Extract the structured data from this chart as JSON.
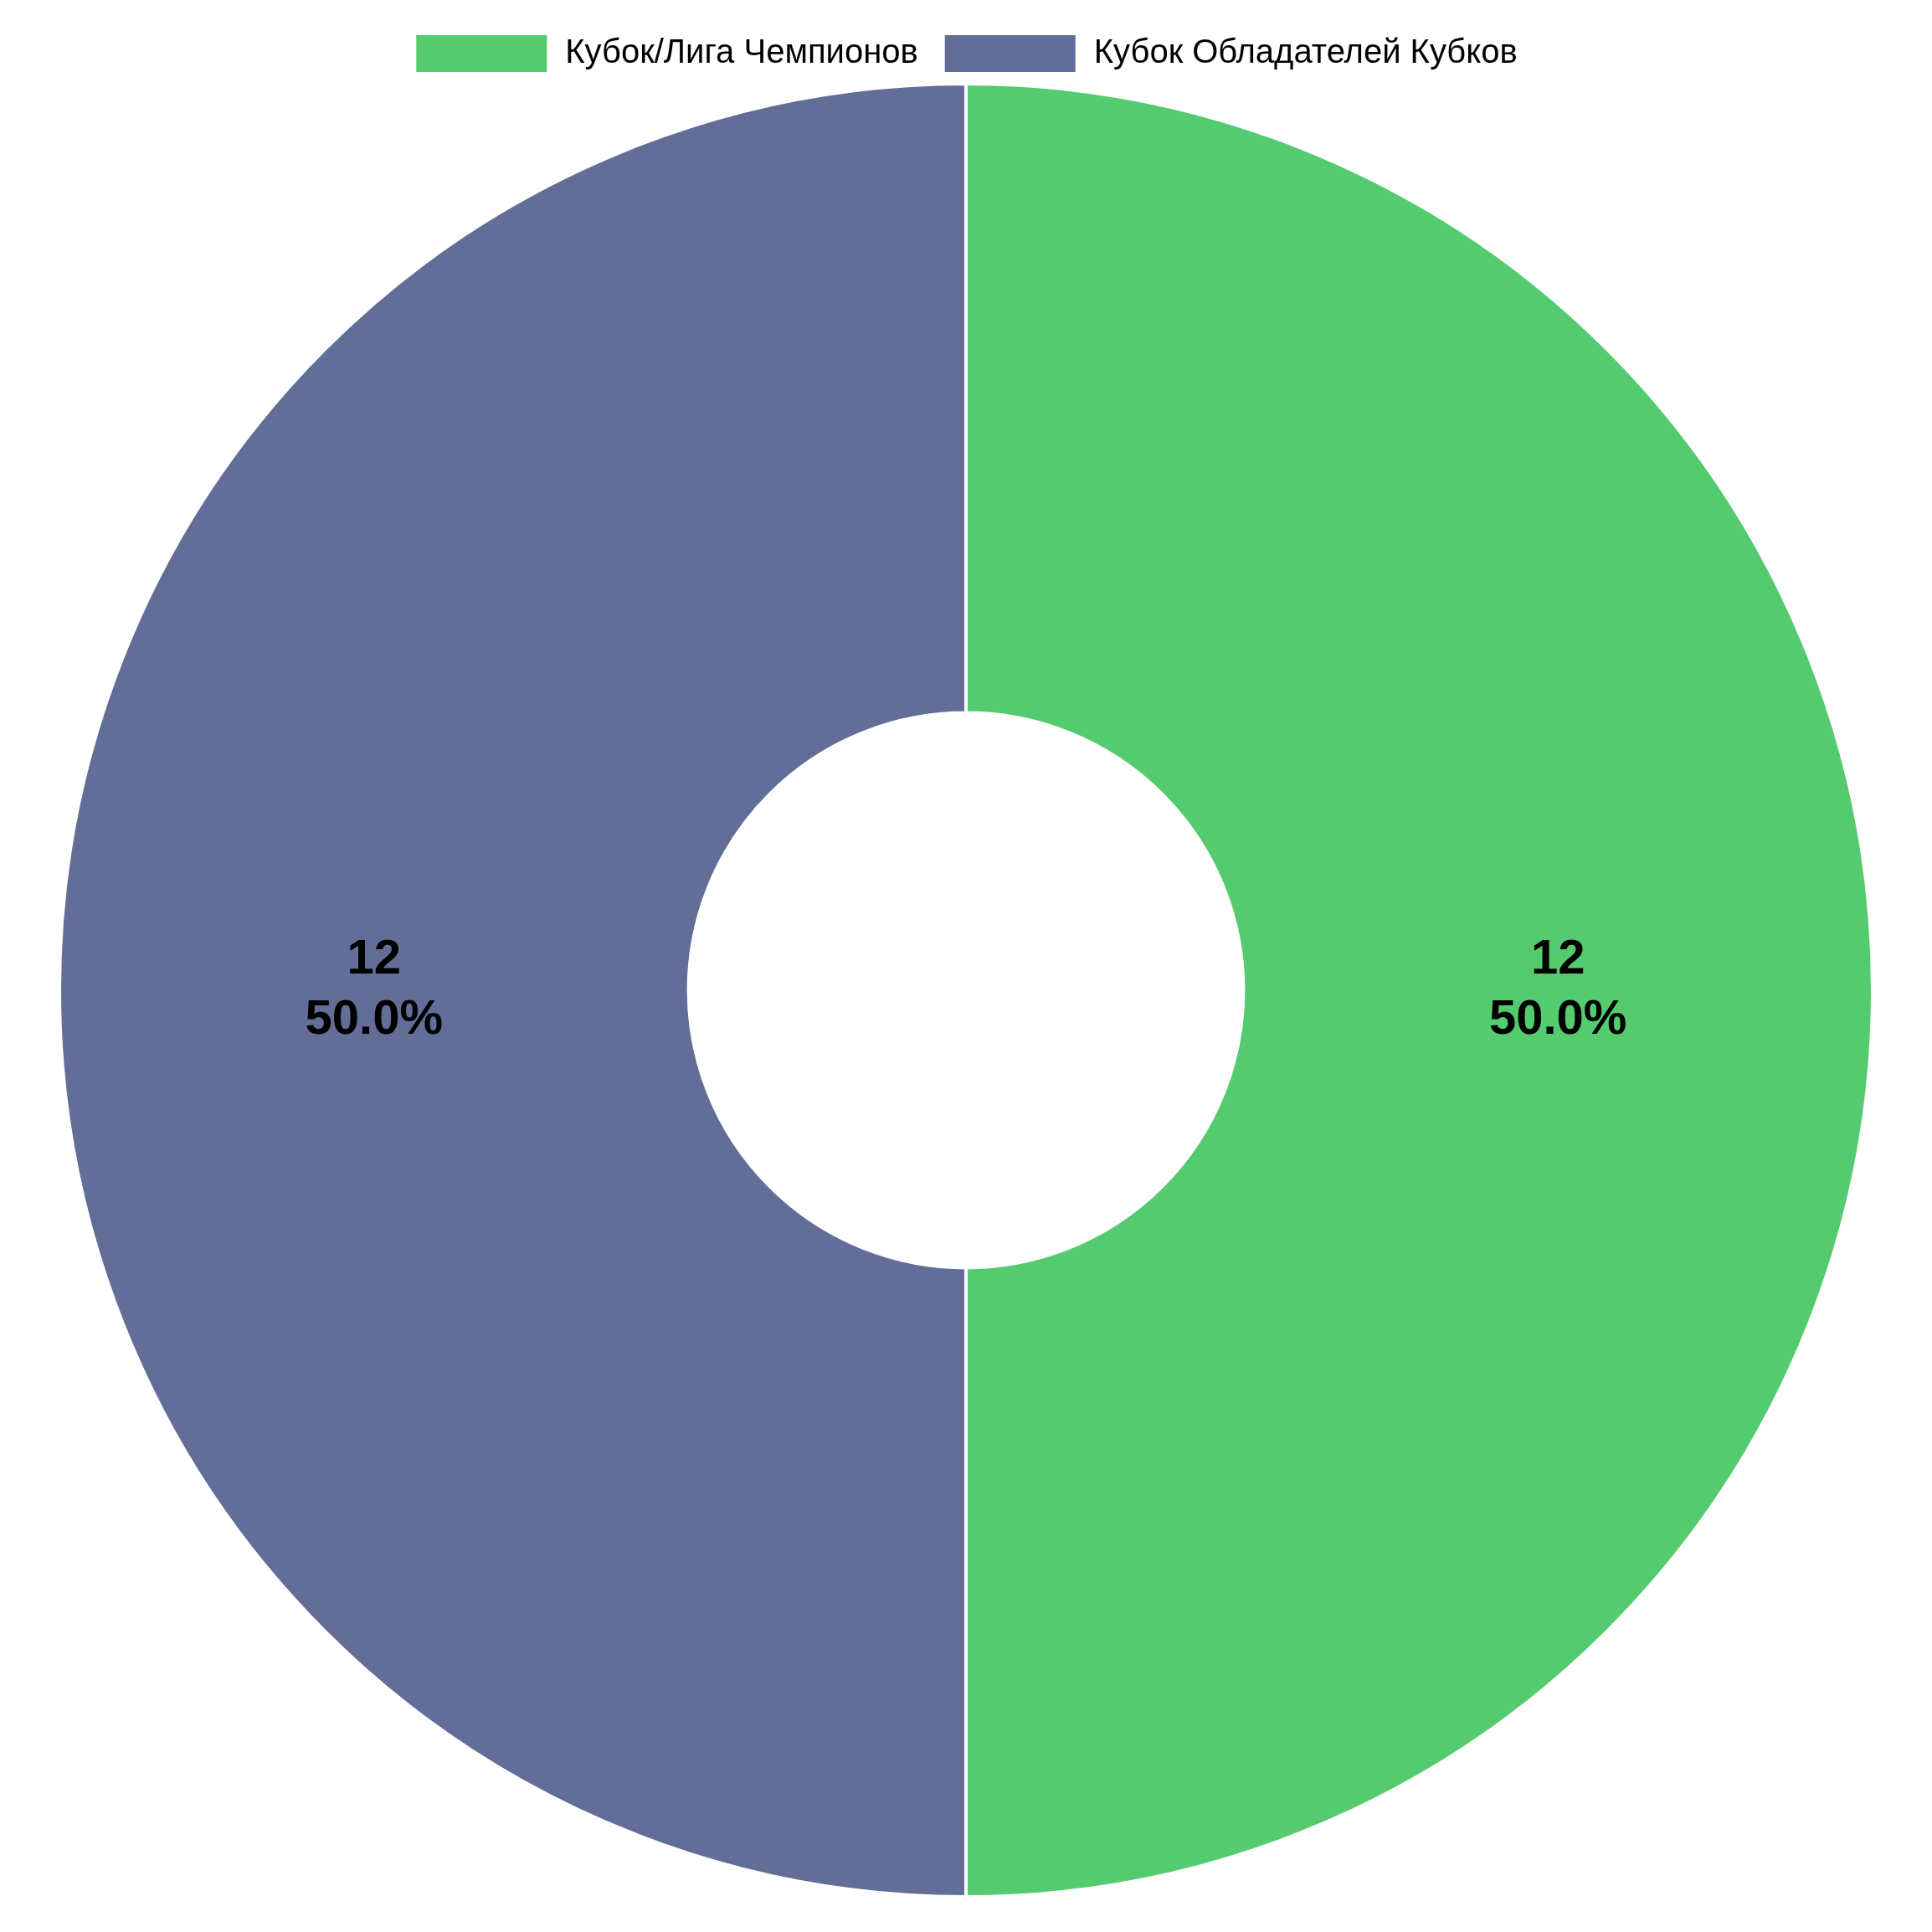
{
  "chart_data": {
    "type": "donut",
    "categories": [
      "Кубок/Лига Чемпионов",
      "Кубок Обладателей Кубков"
    ],
    "values": [
      12,
      12
    ],
    "colors": [
      "#55cb6f",
      "#626d98"
    ],
    "value_labels": [
      "12\n50.0%",
      "12\n50.0%"
    ],
    "legend": "top"
  }
}
